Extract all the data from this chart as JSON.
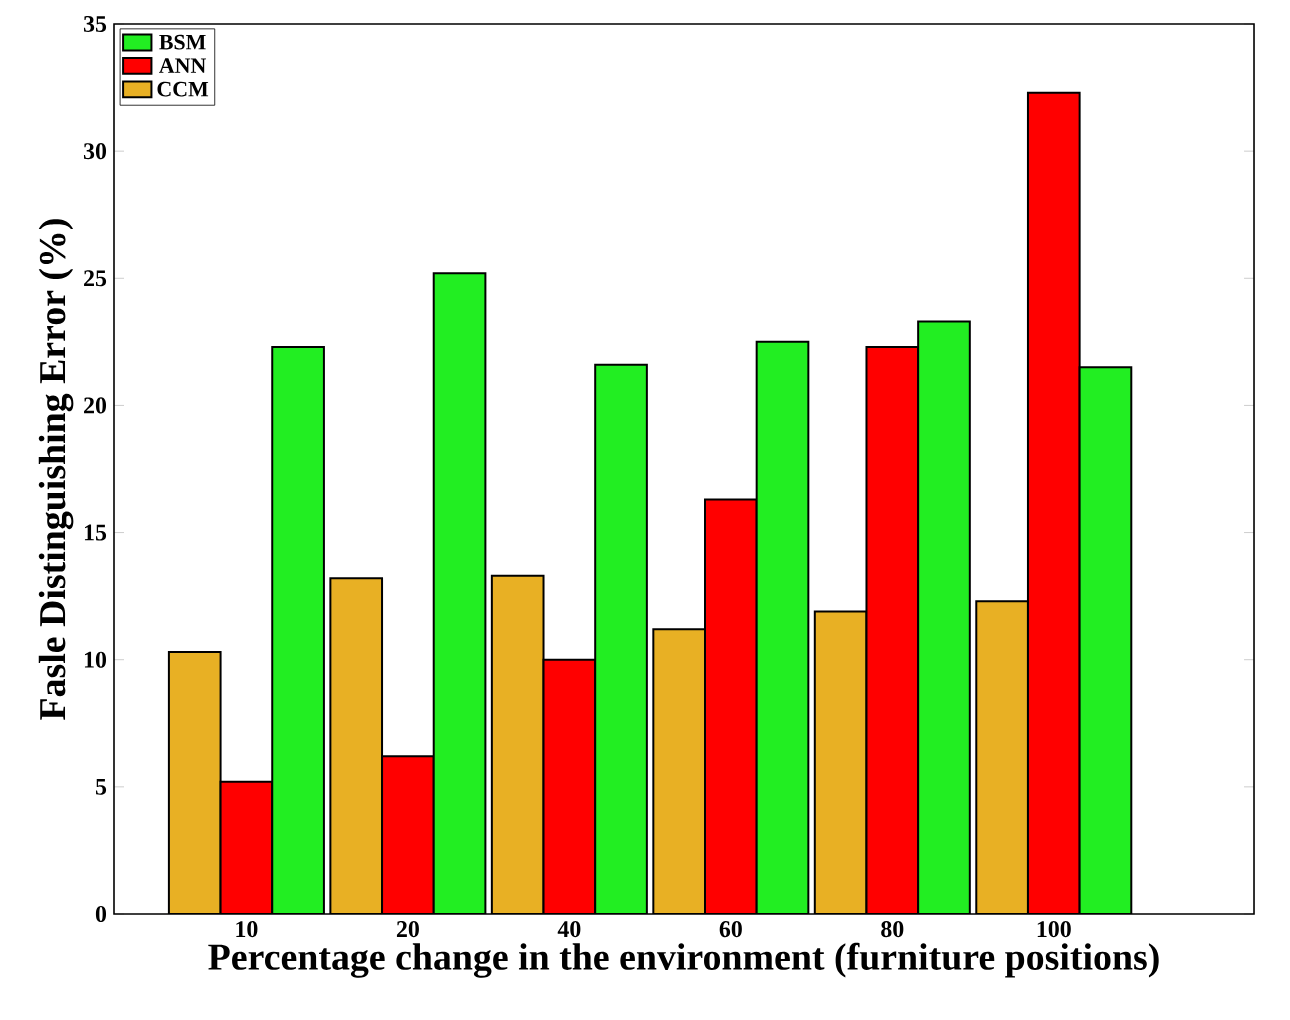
{
  "chart_data": {
    "type": "bar",
    "xlabel": "Percentage change in the environment (furniture positions)",
    "ylabel": "Fasle Distinguishing Error (%)",
    "categories": [
      "10",
      "20",
      "40",
      "60",
      "80",
      "100"
    ],
    "series": [
      {
        "name": "CCM",
        "color": "#e8b024",
        "values": [
          10.3,
          13.2,
          13.3,
          11.2,
          11.9,
          12.3
        ]
      },
      {
        "name": "ANN",
        "color": "#ff0000",
        "values": [
          5.2,
          6.2,
          10.0,
          16.3,
          22.3,
          32.3
        ]
      },
      {
        "name": "BSM",
        "color": "#22ee22",
        "values": [
          22.3,
          25.2,
          21.6,
          22.5,
          23.3,
          21.5
        ]
      }
    ],
    "ylim": [
      0,
      35
    ],
    "yticks": [
      0,
      5,
      10,
      15,
      20,
      25,
      30,
      35
    ],
    "legend": "top left",
    "grid": false
  }
}
